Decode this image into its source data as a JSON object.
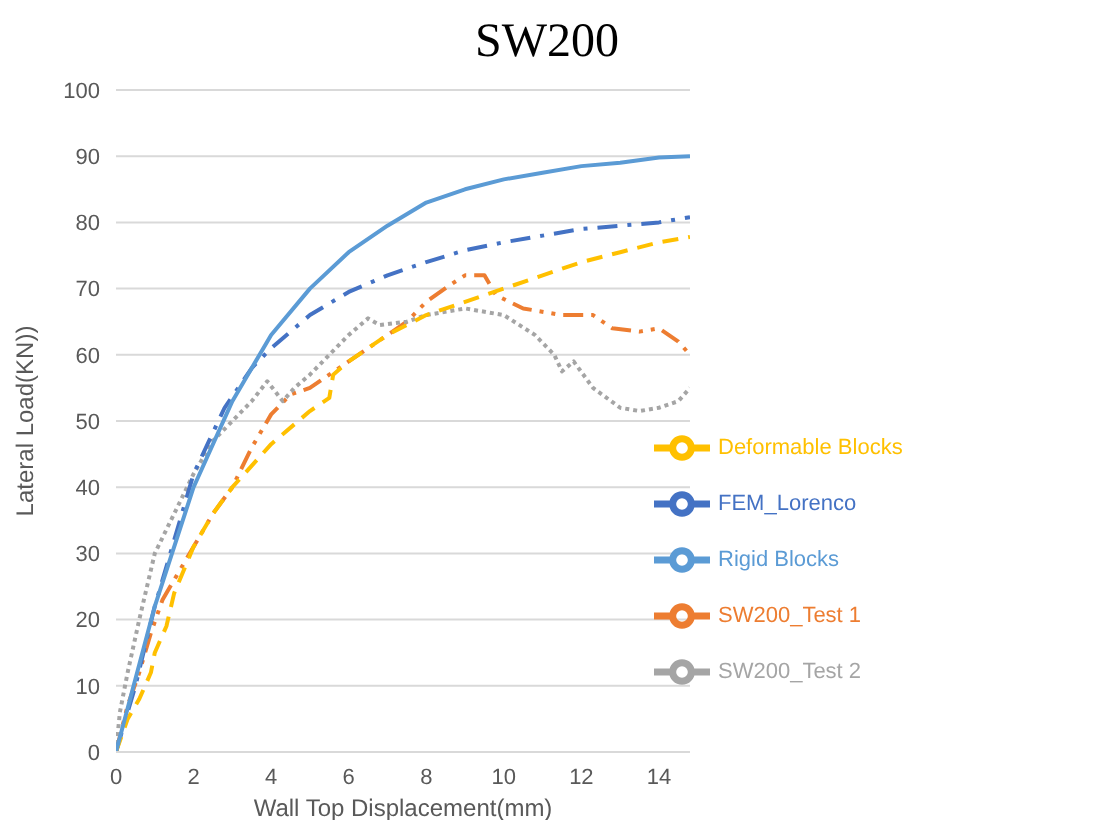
{
  "chart_data": {
    "type": "line",
    "title": "SW200",
    "xlabel": "Wall Top Displacement(mm)",
    "ylabel": "Lateral Load(KN))",
    "xlim": [
      0,
      14.8
    ],
    "xticks": [
      0,
      2,
      4,
      6,
      8,
      10,
      12,
      14
    ],
    "ylim": [
      0,
      100
    ],
    "yticks": [
      0,
      10,
      20,
      30,
      40,
      50,
      60,
      70,
      80,
      90,
      100
    ],
    "grid": "y",
    "legend": "bottom right",
    "marker": "none",
    "series": [
      {
        "name": "SW200_Test 1",
        "color": "#ed7d31",
        "line_style": "dashdotdot",
        "x": [
          0,
          0.3,
          0.6,
          0.9,
          1.2,
          1.5,
          2,
          2.5,
          3,
          3.5,
          4,
          4.5,
          5,
          5.5,
          6,
          7,
          7.5,
          8,
          8.6,
          9,
          9.5,
          9.8,
          10.5,
          11.5,
          12.3,
          12.8,
          13.5,
          14,
          14.5,
          14.8
        ],
        "values": [
          0,
          7,
          12,
          18,
          23,
          26,
          31,
          36,
          40,
          46,
          51,
          54,
          55,
          57,
          59,
          63,
          65,
          68,
          70.5,
          72,
          72,
          69,
          67,
          66,
          66,
          64,
          63.5,
          64,
          62,
          60
        ]
      },
      {
        "name": "SW200_Test 2",
        "color": "#a5a5a5",
        "line_style": "dotted",
        "x": [
          0,
          0.1,
          0.3,
          0.6,
          1,
          1.5,
          2,
          2.5,
          3,
          3.5,
          3.9,
          4.3,
          4.6,
          5,
          5.5,
          6,
          6.5,
          6.8,
          7.5,
          8,
          9,
          10,
          10.8,
          11.3,
          11.5,
          11.8,
          12.3,
          13,
          13.5,
          14,
          14.5,
          14.8
        ],
        "values": [
          0,
          6,
          12,
          20,
          30,
          36,
          42,
          47,
          50,
          53,
          56,
          53,
          55,
          57,
          60,
          63,
          65.5,
          64.5,
          65,
          66,
          67,
          66,
          63,
          60,
          57.5,
          59,
          55,
          52,
          51.5,
          52,
          53,
          55
        ]
      },
      {
        "name": "FEM_Lorenco",
        "color": "#4472c4",
        "line_style": "dashdot",
        "x": [
          0,
          0.5,
          1,
          2,
          2.8,
          3.5,
          4,
          5,
          6,
          7,
          8,
          9,
          10,
          11,
          12,
          13,
          14,
          14.8
        ],
        "values": [
          0,
          10,
          22,
          42,
          52,
          58,
          61,
          66,
          69.5,
          72,
          74,
          75.8,
          77,
          78,
          79,
          79.5,
          80,
          80.8
        ]
      },
      {
        "name": "Deformable Blocks",
        "color": "#ffc000",
        "line_style": "dashed",
        "x": [
          0,
          0.3,
          0.6,
          0.9,
          1,
          1.3,
          1.5,
          2,
          2.5,
          3,
          4,
          5,
          5.5,
          5.6,
          6,
          7,
          8,
          9,
          10,
          11,
          12,
          13,
          14,
          14.8
        ],
        "values": [
          0,
          5,
          8,
          12,
          15,
          19,
          24,
          31,
          36,
          40,
          46.5,
          51.5,
          53.5,
          57,
          59,
          63,
          66,
          68,
          70,
          72,
          74,
          75.5,
          77,
          77.8
        ]
      },
      {
        "name": "Rigid Blocks",
        "color": "#5b9bd5",
        "line_style": "solid",
        "x": [
          0,
          1,
          2,
          3,
          4,
          5,
          6,
          7,
          8,
          9,
          10,
          11,
          12,
          13,
          14,
          14.8
        ],
        "values": [
          0,
          22,
          40,
          53,
          63,
          70,
          75.5,
          79.5,
          83,
          85,
          86.5,
          87.5,
          88.5,
          89,
          89.8,
          90
        ]
      }
    ]
  }
}
